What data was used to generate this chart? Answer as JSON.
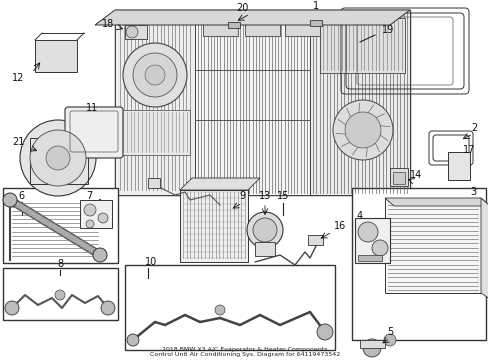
{
  "title_line1": "2018 BMW X3 A/C Evaporator & Heater Components",
  "title_line2": "Control Unit Air Conditioning Sys. Diagram for 64119473542",
  "bg": "#ffffff",
  "fg": "#1a1a1a",
  "fig_w": 4.89,
  "fig_h": 3.6,
  "dpi": 100
}
